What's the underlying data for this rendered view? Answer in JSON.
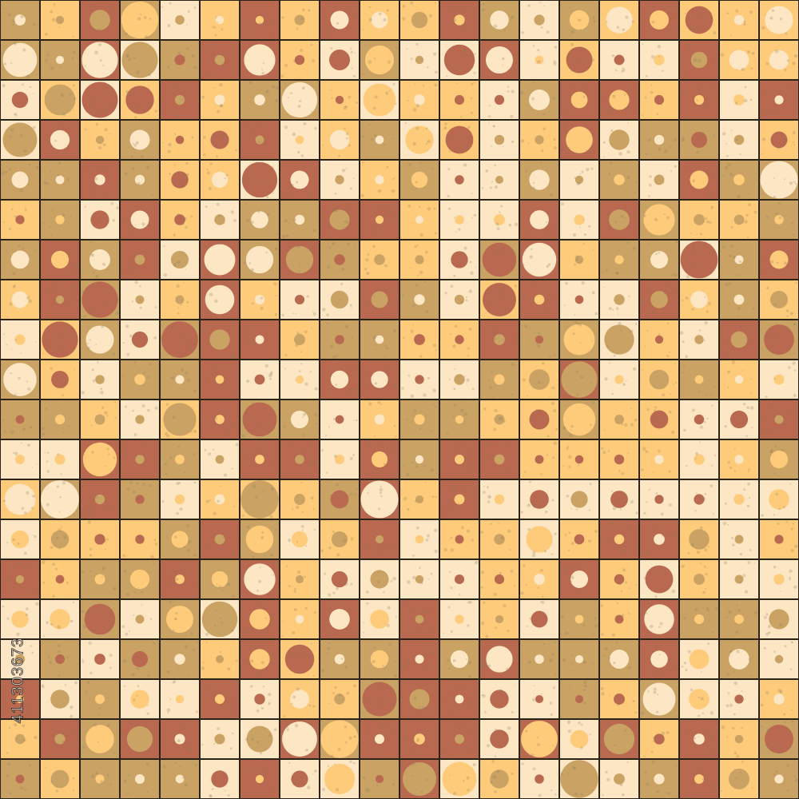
{
  "pattern": {
    "rows": 20,
    "columns": 20,
    "line_color": "#2a2418",
    "palette": {
      "olive": "#c9a264",
      "yellow": "#fdcb7a",
      "rust": "#b9694f",
      "cream": "#fde6c3"
    },
    "speckle_color": "#8a7a5a"
  },
  "watermark": {
    "text": "411303673"
  }
}
